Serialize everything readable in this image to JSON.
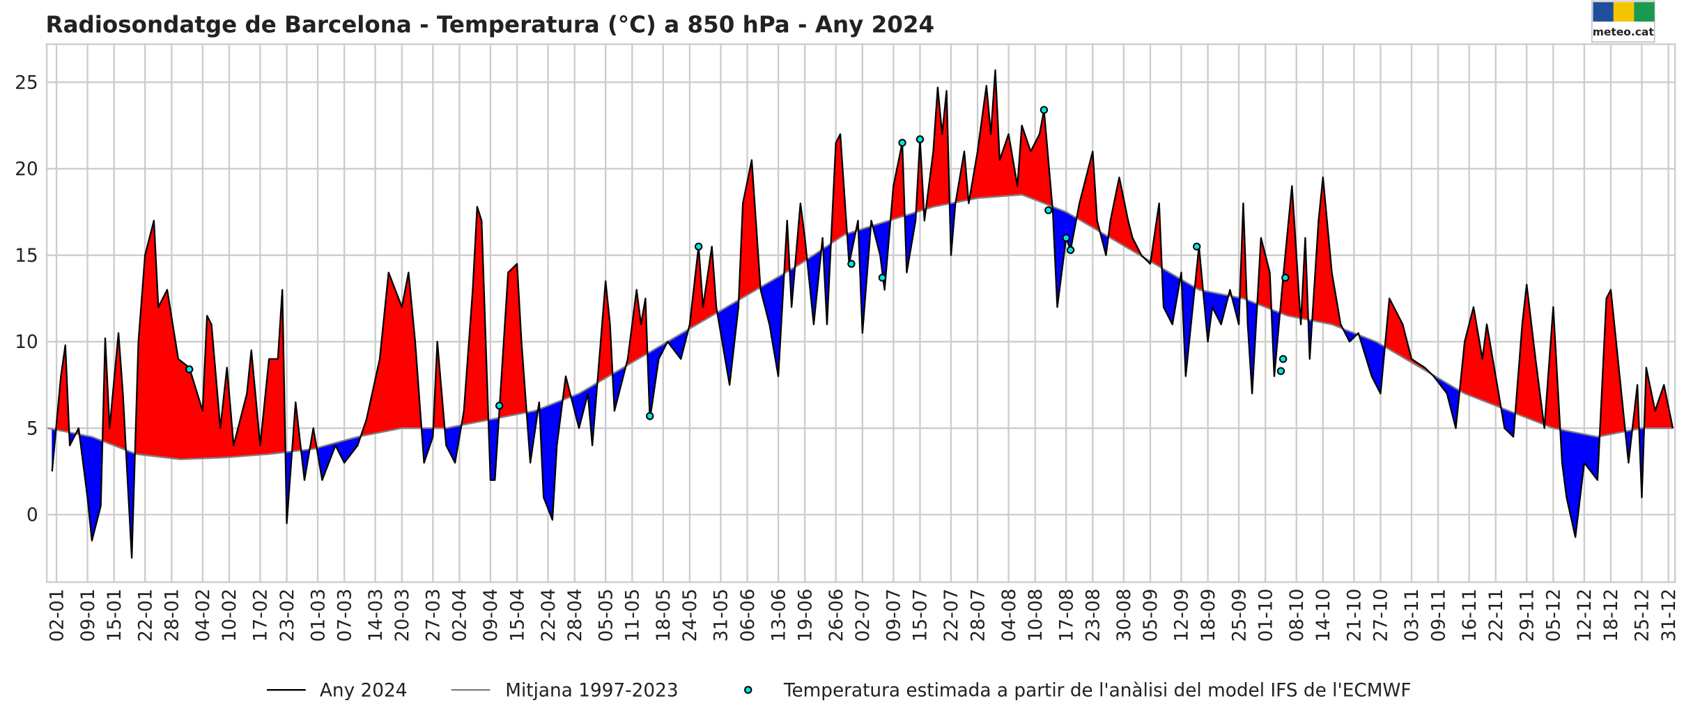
{
  "chart_data": {
    "type": "line",
    "title": "Radiosondatge de Barcelona - Temperatura (°C) a 850 hPa - Any 2024",
    "logo": "meteo.cat",
    "xlim": [
      -0.2,
      367.5
    ],
    "ylim": [
      -3.9,
      27.2
    ],
    "yticks": [
      0,
      5,
      10,
      15,
      20,
      25
    ],
    "grid": true,
    "above_color": "#ff0000",
    "below_color": "#0000ff",
    "xticks": [
      {
        "value": 2,
        "label": "02-01"
      },
      {
        "value": 9,
        "label": "09-01"
      },
      {
        "value": 15,
        "label": "15-01"
      },
      {
        "value": 22,
        "label": "22-01"
      },
      {
        "value": 28,
        "label": "28-01"
      },
      {
        "value": 35,
        "label": "04-02"
      },
      {
        "value": 41,
        "label": "10-02"
      },
      {
        "value": 48,
        "label": "17-02"
      },
      {
        "value": 54,
        "label": "23-02"
      },
      {
        "value": 61,
        "label": "01-03"
      },
      {
        "value": 67,
        "label": "07-03"
      },
      {
        "value": 74,
        "label": "14-03"
      },
      {
        "value": 80,
        "label": "20-03"
      },
      {
        "value": 87,
        "label": "27-03"
      },
      {
        "value": 93,
        "label": "02-04"
      },
      {
        "value": 100,
        "label": "09-04"
      },
      {
        "value": 106,
        "label": "15-04"
      },
      {
        "value": 113,
        "label": "22-04"
      },
      {
        "value": 119,
        "label": "28-04"
      },
      {
        "value": 126,
        "label": "05-05"
      },
      {
        "value": 132,
        "label": "11-05"
      },
      {
        "value": 139,
        "label": "18-05"
      },
      {
        "value": 145,
        "label": "24-05"
      },
      {
        "value": 152,
        "label": "31-05"
      },
      {
        "value": 158,
        "label": "06-06"
      },
      {
        "value": 165,
        "label": "13-06"
      },
      {
        "value": 171,
        "label": "19-06"
      },
      {
        "value": 178,
        "label": "26-06"
      },
      {
        "value": 184,
        "label": "02-07"
      },
      {
        "value": 191,
        "label": "09-07"
      },
      {
        "value": 197,
        "label": "15-07"
      },
      {
        "value": 204,
        "label": "22-07"
      },
      {
        "value": 210,
        "label": "28-07"
      },
      {
        "value": 217,
        "label": "04-08"
      },
      {
        "value": 223,
        "label": "10-08"
      },
      {
        "value": 230,
        "label": "17-08"
      },
      {
        "value": 236,
        "label": "23-08"
      },
      {
        "value": 243,
        "label": "30-08"
      },
      {
        "value": 249,
        "label": "05-09"
      },
      {
        "value": 256,
        "label": "12-09"
      },
      {
        "value": 262,
        "label": "18-09"
      },
      {
        "value": 269,
        "label": "25-09"
      },
      {
        "value": 275,
        "label": "01-10"
      },
      {
        "value": 282,
        "label": "08-10"
      },
      {
        "value": 288,
        "label": "14-10"
      },
      {
        "value": 295,
        "label": "21-10"
      },
      {
        "value": 301,
        "label": "27-10"
      },
      {
        "value": 308,
        "label": "03-11"
      },
      {
        "value": 314,
        "label": "09-11"
      },
      {
        "value": 321,
        "label": "16-11"
      },
      {
        "value": 327,
        "label": "22-11"
      },
      {
        "value": 334,
        "label": "29-11"
      },
      {
        "value": 340,
        "label": "05-12"
      },
      {
        "value": 347,
        "label": "12-12"
      },
      {
        "value": 353,
        "label": "18-12"
      },
      {
        "value": 360,
        "label": "25-12"
      },
      {
        "value": 366,
        "label": "31-12"
      }
    ],
    "series": [
      {
        "name": "Any 2024",
        "color": "#000000",
        "x": [
          1,
          3,
          4,
          5,
          7,
          9,
          10,
          12,
          13,
          14,
          16,
          17,
          19,
          20.5,
          22,
          24,
          25,
          27,
          29.5,
          32,
          35,
          36,
          37,
          39,
          40.5,
          42,
          45,
          46,
          48,
          50,
          52,
          53,
          54,
          56,
          58,
          60,
          62,
          65,
          67,
          70,
          72,
          75,
          77,
          80,
          81.5,
          83,
          85,
          87,
          88,
          90,
          92,
          94,
          96,
          97,
          98,
          100,
          101,
          102,
          104,
          106,
          107,
          109,
          111,
          112,
          114,
          115,
          117,
          120,
          122,
          123,
          126,
          127,
          128,
          131,
          133,
          134,
          135,
          136,
          138,
          140,
          143,
          145,
          147,
          148,
          150,
          151,
          154,
          156,
          157,
          159,
          161,
          163,
          165,
          167,
          168,
          170,
          171,
          173,
          175,
          176,
          178,
          179,
          181,
          183,
          184,
          186,
          188,
          189,
          191,
          193,
          194,
          196,
          197,
          198,
          200,
          201,
          202,
          203,
          204,
          205,
          207,
          208,
          210,
          212,
          213,
          214,
          215,
          217,
          219,
          220,
          222,
          224,
          225,
          227,
          228,
          230,
          231,
          233,
          234,
          236,
          237,
          239,
          240,
          242,
          244,
          245,
          247,
          249,
          251,
          252,
          254,
          256,
          257,
          260,
          262,
          263,
          265,
          267,
          269,
          270,
          271,
          272,
          274,
          276,
          277,
          279,
          281,
          283,
          284,
          285,
          287,
          288,
          290,
          292,
          294,
          296,
          299,
          301,
          303,
          306,
          308,
          311,
          313,
          316,
          318,
          320,
          322,
          324,
          325,
          327,
          329,
          331,
          333,
          334,
          336,
          338,
          340,
          342,
          343,
          345,
          347,
          350,
          352,
          353,
          355,
          357,
          359,
          360,
          361,
          363,
          365,
          367
        ],
        "values": [
          2.5,
          8,
          9.8,
          4,
          5,
          1,
          -1.5,
          0.5,
          10.2,
          5,
          10.5,
          7,
          -2.5,
          10,
          15,
          17,
          12,
          13,
          9,
          8.5,
          6,
          11.5,
          11,
          5,
          8.5,
          4,
          7,
          9.5,
          4,
          9,
          9,
          13,
          -0.5,
          6.5,
          2,
          5,
          2,
          4,
          3,
          4,
          5.5,
          9,
          14,
          12,
          14,
          10,
          3,
          4.5,
          10,
          4,
          3,
          6,
          13,
          17.8,
          17,
          2,
          2,
          6,
          14,
          14.5,
          10,
          3,
          6.5,
          1,
          -0.3,
          4,
          8,
          5,
          7,
          4,
          13.5,
          11,
          6,
          9,
          13,
          11,
          12.5,
          5.5,
          9,
          10,
          9,
          11,
          15.5,
          12,
          15.5,
          12,
          7.5,
          12,
          18,
          20.5,
          13,
          11,
          8,
          17,
          12,
          18,
          16,
          11,
          16,
          11,
          21.5,
          22,
          14.5,
          17,
          10.5,
          17,
          15,
          13,
          19,
          21.5,
          14,
          17,
          21.7,
          17,
          21,
          24.7,
          22,
          24.5,
          15,
          18,
          21,
          18,
          21,
          24.8,
          22,
          25.7,
          20.5,
          22,
          19,
          22.5,
          21,
          22,
          23.4,
          17.5,
          12,
          16,
          15.3,
          18,
          19,
          21,
          17,
          15,
          17,
          19.5,
          17,
          16,
          15,
          14.5,
          18,
          12,
          11,
          14,
          8,
          15.5,
          10,
          12,
          11,
          13,
          11,
          18,
          11,
          7,
          16,
          14,
          8,
          13.7,
          19,
          11,
          16,
          9,
          17,
          19.5,
          14,
          11,
          10,
          10.5,
          8,
          7,
          12.5,
          11,
          9,
          8.5,
          8,
          7,
          5,
          10,
          12,
          9,
          11,
          8,
          5,
          4.5,
          11,
          13.3,
          9,
          5,
          12,
          3,
          1,
          -1.3,
          3,
          2,
          12.5,
          13,
          8,
          3,
          7.5,
          1,
          8.5,
          6,
          7.5,
          5
        ]
      },
      {
        "name": "Mitjana 1997-2023",
        "color": "#808080",
        "x": [
          0,
          10,
          20,
          30,
          40,
          50,
          60,
          70,
          80,
          90,
          100,
          110,
          120,
          130,
          140,
          150,
          160,
          170,
          180,
          190,
          200,
          210,
          220,
          230,
          240,
          250,
          260,
          270,
          280,
          290,
          300,
          310,
          320,
          330,
          340,
          350,
          360,
          367
        ],
        "values": [
          5,
          4.5,
          3.5,
          3.2,
          3.3,
          3.5,
          3.8,
          4.5,
          5,
          5,
          5.5,
          6,
          7,
          8.5,
          10,
          11.5,
          13,
          14.5,
          16.2,
          17,
          17.8,
          18.3,
          18.5,
          17.5,
          16,
          14.5,
          13,
          12.5,
          11.5,
          11,
          10,
          8.5,
          7,
          6,
          5,
          4.5,
          5,
          5
        ]
      },
      {
        "name": "Temperatura estimada a partir de l'anàlisi del model IFS de l'ECMWF",
        "color": "#00e5e5",
        "markers_only": true,
        "x": [
          32,
          102,
          136,
          147,
          181.5,
          188.5,
          193,
          197,
          225,
          226,
          230,
          231,
          259.5,
          278.5,
          279,
          279.5
        ],
        "values": [
          8.4,
          6.3,
          5.7,
          15.5,
          14.5,
          13.7,
          21.5,
          21.7,
          23.4,
          17.6,
          16,
          15.3,
          15.5,
          8.3,
          9,
          13.7
        ]
      }
    ]
  }
}
